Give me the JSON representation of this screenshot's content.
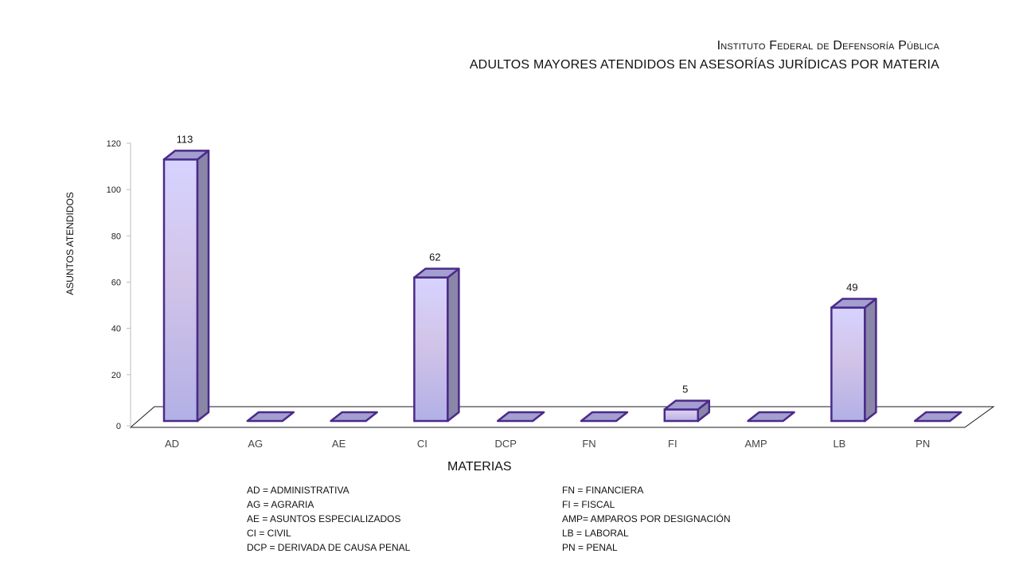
{
  "header": {
    "title": "Instituto Federal de Defensoría Pública",
    "subtitle": "ADULTOS MAYORES ATENDIDOS EN ASESORÍAS JURÍDICAS POR MATERIA"
  },
  "chart_data": {
    "type": "bar",
    "title": "Instituto Federal de Defensoría Pública",
    "subtitle": "ADULTOS MAYORES ATENDIDOS EN ASESORÍAS JURÍDICAS POR MATERIA",
    "xlabel": "MATERIAS",
    "ylabel": "ASUNTOS ATENDIDOS",
    "categories": [
      "AD",
      "AG",
      "AE",
      "CI",
      "DCP",
      "FN",
      "FI",
      "AMP",
      "LB",
      "PN"
    ],
    "values": [
      113,
      0,
      0,
      62,
      0,
      0,
      5,
      0,
      49,
      0
    ],
    "data_labels": [
      "113",
      "",
      "",
      "62",
      "",
      "",
      "5",
      "",
      "49",
      ""
    ],
    "ylim": [
      0,
      120
    ],
    "yticks": [
      0,
      20,
      40,
      60,
      80,
      100,
      120
    ],
    "grid": false,
    "style": "3d-column",
    "colors": {
      "front_top": "#d4d0ff",
      "front_bottom": "#b3b1e3",
      "side": "#8a86a8",
      "top": "#a39fd0",
      "outline": "#4b2a8a"
    }
  },
  "legend": {
    "left": [
      "AD = ADMINISTRATIVA",
      "AG = AGRARIA",
      "AE = ASUNTOS ESPECIALIZADOS",
      "CI = CIVIL",
      "DCP = DERIVADA DE CAUSA PENAL"
    ],
    "right": [
      "FN = FINANCIERA",
      "FI = FISCAL",
      "AMP= AMPAROS POR DESIGNACIÓN",
      "LB = LABORAL",
      "PN = PENAL"
    ]
  }
}
